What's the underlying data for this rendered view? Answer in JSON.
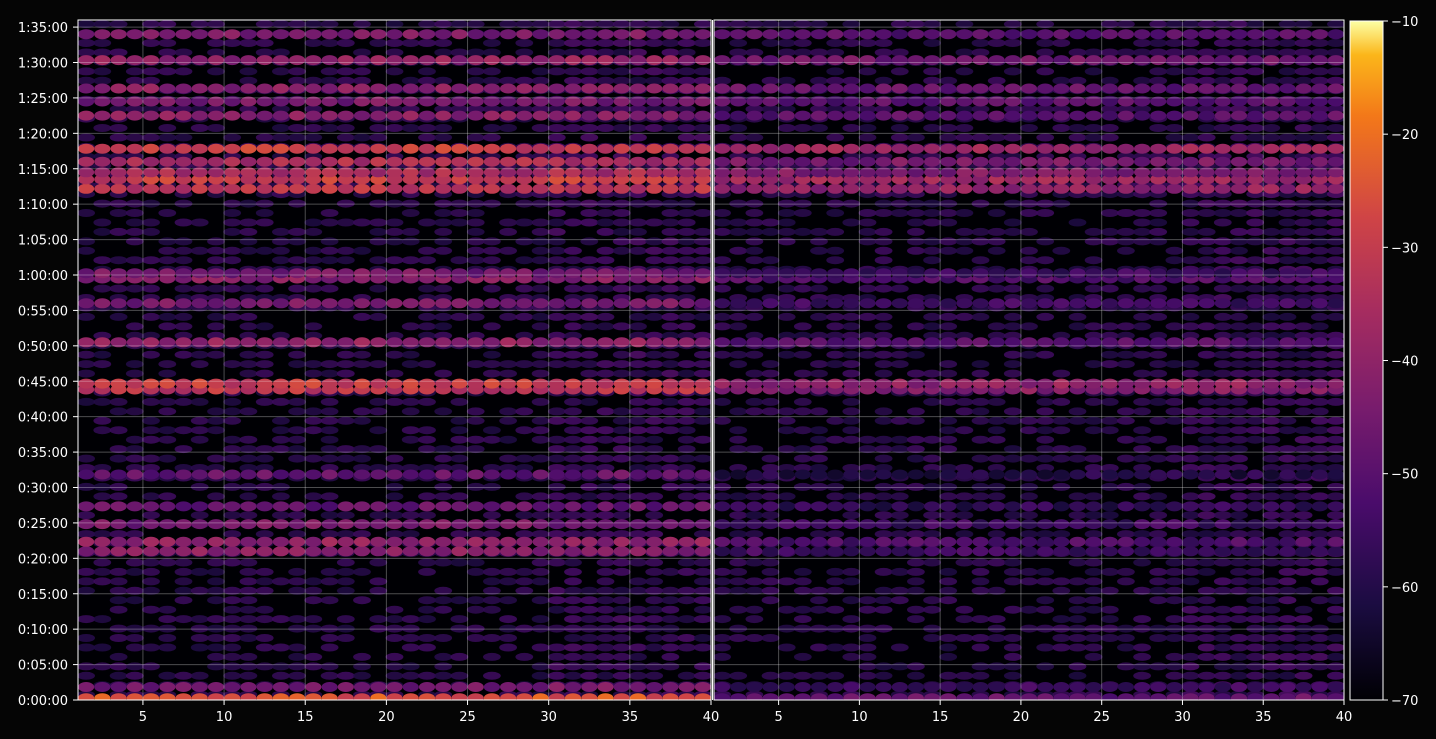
{
  "chart_data": {
    "type": "heatmap",
    "colormap": "inferno",
    "background": "#050505",
    "grid": true,
    "panels": [
      {
        "name": "left",
        "x_range": [
          1,
          40
        ],
        "x_ticks": [
          5,
          10,
          15,
          20,
          25,
          30,
          35,
          40
        ],
        "x_tick_labels": [
          "5",
          "10",
          "15",
          "20",
          "25",
          "30",
          "35",
          "40"
        ]
      },
      {
        "name": "right",
        "x_range": [
          1,
          40
        ],
        "x_ticks": [
          5,
          10,
          15,
          20,
          25,
          30,
          35,
          40
        ],
        "x_tick_labels": [
          "5",
          "10",
          "15",
          "20",
          "25",
          "30",
          "35",
          "40"
        ]
      }
    ],
    "y_range_seconds": [
      0,
      5760
    ],
    "y_ticks_seconds": [
      0,
      300,
      600,
      900,
      1200,
      1500,
      1800,
      2100,
      2400,
      2700,
      3000,
      3300,
      3600,
      3900,
      4200,
      4500,
      4800,
      5100,
      5400,
      5700
    ],
    "y_tick_labels": [
      "0:00:00",
      "0:05:00",
      "0:10:00",
      "0:15:00",
      "0:20:00",
      "0:25:00",
      "0:30:00",
      "0:35:00",
      "0:40:00",
      "0:45:00",
      "0:50:00",
      "0:55:00",
      "1:00:00",
      "1:05:00",
      "1:10:00",
      "1:15:00",
      "1:20:00",
      "1:25:00",
      "1:30:00",
      "1:35:00"
    ],
    "colorbar": {
      "range": [
        -70,
        -10
      ],
      "ticks": [
        -70,
        -60,
        -50,
        -40,
        -30,
        -20,
        -10
      ],
      "tick_labels": [
        "−70",
        "−60",
        "−50",
        "−40",
        "−30",
        "−20",
        "−10"
      ]
    },
    "approx_band_levels": [
      {
        "time_seconds": 15,
        "left": -25,
        "right": -48
      },
      {
        "time_seconds": 110,
        "left": -45,
        "right": -55
      },
      {
        "time_seconds": 1260,
        "left": -42,
        "right": -55
      },
      {
        "time_seconds": 1340,
        "left": -40,
        "right": -52
      },
      {
        "time_seconds": 1490,
        "left": -45,
        "right": -55
      },
      {
        "time_seconds": 1640,
        "left": -48,
        "right": -58
      },
      {
        "time_seconds": 1910,
        "left": -48,
        "right": -60
      },
      {
        "time_seconds": 2630,
        "left": -32,
        "right": -42
      },
      {
        "time_seconds": 2680,
        "left": -30,
        "right": -40
      },
      {
        "time_seconds": 3030,
        "left": -40,
        "right": -50
      },
      {
        "time_seconds": 3360,
        "left": -45,
        "right": -55
      },
      {
        "time_seconds": 3570,
        "left": -42,
        "right": -52
      },
      {
        "time_seconds": 3615,
        "left": -45,
        "right": -55
      },
      {
        "time_seconds": 4330,
        "left": -32,
        "right": -40
      },
      {
        "time_seconds": 4410,
        "left": -30,
        "right": -38
      },
      {
        "time_seconds": 4470,
        "left": -36,
        "right": -44
      },
      {
        "time_seconds": 4560,
        "left": -35,
        "right": -45
      },
      {
        "time_seconds": 4670,
        "left": -30,
        "right": -38
      },
      {
        "time_seconds": 4950,
        "left": -42,
        "right": -50
      },
      {
        "time_seconds": 5070,
        "left": -45,
        "right": -50
      },
      {
        "time_seconds": 5180,
        "left": -42,
        "right": -48
      },
      {
        "time_seconds": 5420,
        "left": -40,
        "right": -46
      },
      {
        "time_seconds": 5640,
        "left": -44,
        "right": -50
      }
    ]
  }
}
